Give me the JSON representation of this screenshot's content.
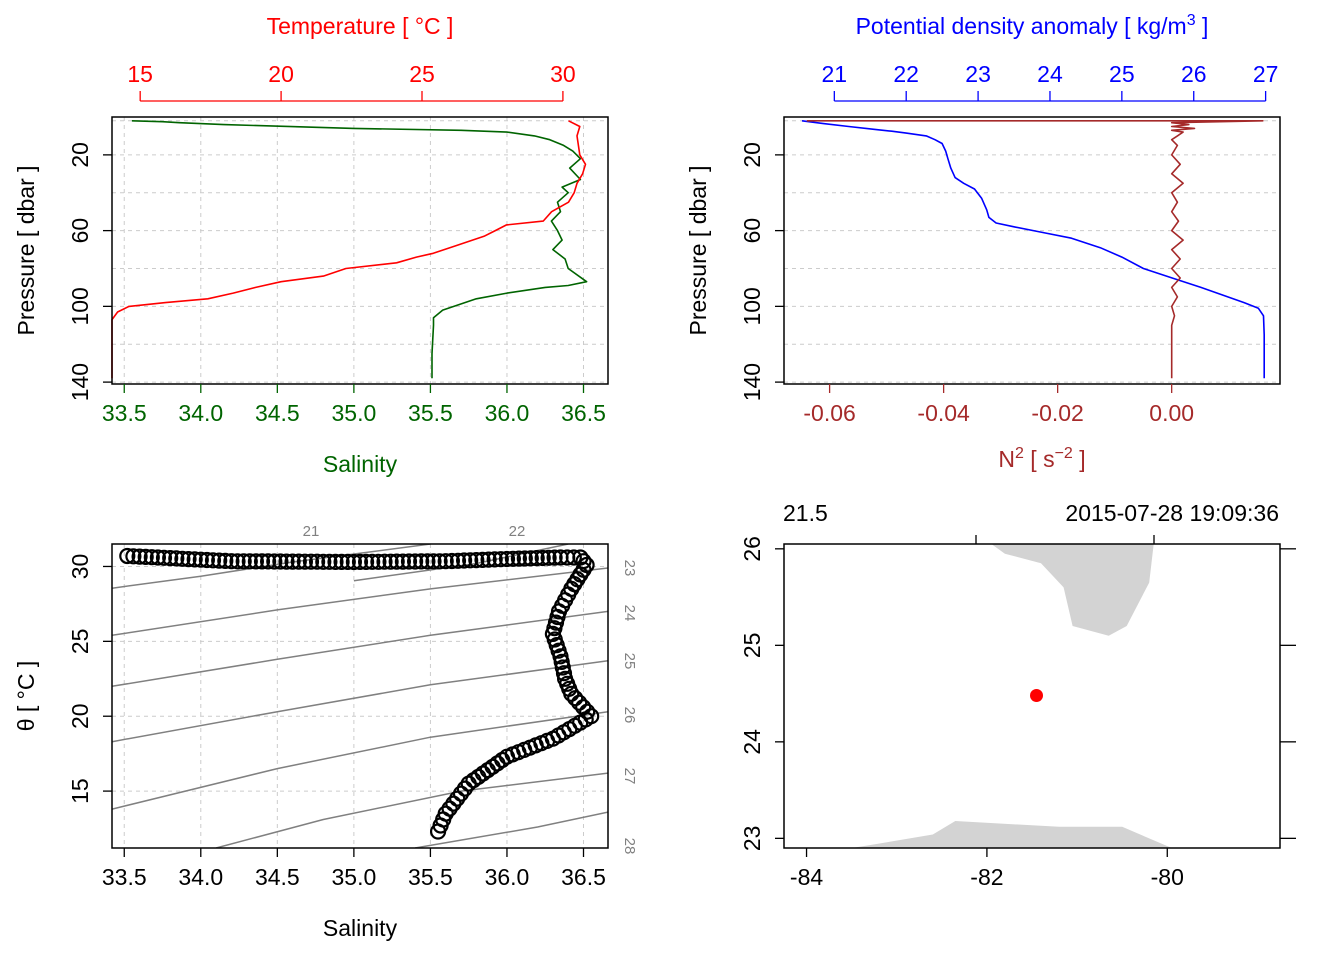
{
  "chart_data": [
    {
      "type": "line",
      "name": "profile-TS",
      "x_bottom": {
        "label": "Salinity",
        "range": [
          33.42,
          36.66
        ],
        "ticks": [
          "33.5",
          "34.0",
          "34.5",
          "35.0",
          "35.5",
          "36.0",
          "36.5"
        ],
        "color": "#006400"
      },
      "x_top": {
        "label": "Temperature [ °C ]",
        "range": [
          14.0,
          31.6
        ],
        "ticks": [
          "15",
          "20",
          "25",
          "30"
        ],
        "color": "#ff0000"
      },
      "y": {
        "label": "Pressure [ dbar ]",
        "range": [
          141,
          0
        ],
        "ticks": [
          "20",
          "60",
          "100",
          "140"
        ]
      },
      "grid": true,
      "series": [
        {
          "name": "Salinity",
          "axis": "bottom",
          "color": "#006400",
          "x": [
            33.55,
            33.75,
            33.86,
            34.15,
            35.0,
            35.7,
            36.0,
            36.18,
            36.28,
            36.37,
            36.43,
            36.48,
            36.41,
            36.48,
            36.36,
            36.4,
            36.33,
            36.35,
            36.29,
            36.33,
            36.36,
            36.3,
            36.38,
            36.4,
            36.52,
            36.4,
            36.25,
            36.0,
            35.8,
            35.58,
            35.52,
            35.52,
            35.51,
            35.51
          ],
          "y": [
            2,
            2.5,
            3,
            4,
            6,
            7,
            8,
            10,
            12,
            15,
            18,
            22,
            27,
            33,
            37,
            40,
            45,
            50,
            55,
            60,
            65,
            70,
            75,
            80,
            87,
            89,
            90,
            93,
            96,
            102,
            106,
            110,
            125,
            138
          ]
        },
        {
          "name": "Temperature",
          "axis": "top",
          "color": "#ff0000",
          "x": [
            30.2,
            30.6,
            30.5,
            30.6,
            30.8,
            30.7,
            30.5,
            30.4,
            30.2,
            29.6,
            29.3,
            28.0,
            27.6,
            27.2,
            26.2,
            25.4,
            24.8,
            24.1,
            22.3,
            21.5,
            20.0,
            19.1,
            18.3,
            17.4,
            15.9,
            14.6,
            14.2,
            14.0,
            14.0,
            14.0
          ],
          "y": [
            2,
            5,
            10,
            20,
            25,
            30,
            35,
            40,
            45,
            50,
            55,
            57,
            60,
            63,
            68,
            72,
            74,
            77,
            80,
            84,
            87,
            90,
            93,
            96,
            98,
            100,
            103,
            107,
            115,
            138
          ]
        }
      ]
    },
    {
      "type": "line",
      "name": "profile-density-N2",
      "x_bottom": {
        "label_base": "N",
        "label_sup": "2",
        "label_tail": " [ s",
        "label_sup2": "−2",
        "label_end": " ]",
        "range": [
          -0.068,
          0.019
        ],
        "ticks": [
          "-0.06",
          "-0.04",
          "-0.02",
          "0.00"
        ],
        "color": "#a52a2a"
      },
      "x_top": {
        "label_base": "Potential density anomaly [ kg/m",
        "label_sup": "3",
        "label_end": " ]",
        "range": [
          20.3,
          27.2
        ],
        "ticks": [
          "21",
          "22",
          "23",
          "24",
          "25",
          "26",
          "27"
        ],
        "color": "#0000ff"
      },
      "y": {
        "label": "Pressure [ dbar ]",
        "range": [
          141,
          0
        ],
        "ticks": [
          "20",
          "60",
          "100",
          "140"
        ]
      },
      "grid": true,
      "series": [
        {
          "name": "Potential density anomaly",
          "axis": "top",
          "color": "#0000ff",
          "x": [
            20.55,
            20.85,
            21.2,
            21.55,
            21.8,
            22.0,
            22.28,
            22.4,
            22.5,
            22.55,
            22.58,
            22.62,
            22.68,
            22.8,
            22.95,
            23.05,
            23.12,
            23.15,
            23.25,
            23.5,
            23.9,
            24.3,
            24.7,
            25.0,
            25.3,
            25.7,
            26.1,
            26.4,
            26.7,
            26.9,
            26.97,
            26.98,
            26.98
          ],
          "y": [
            2,
            3.5,
            5,
            6.5,
            7.5,
            8.5,
            10,
            12,
            14,
            18,
            22,
            27,
            32,
            35,
            38,
            43,
            49,
            53,
            56,
            58,
            61,
            64,
            69,
            74,
            80,
            85,
            90,
            94,
            98,
            101,
            105,
            115,
            138
          ]
        },
        {
          "name": "N2",
          "axis": "bottom",
          "color": "#a52a2a",
          "x": [
            -0.064,
            0.016,
            0.0,
            0.003,
            0.0,
            0.004,
            0.0,
            0.002,
            0.001,
            0.0,
            0.001,
            0.0,
            0.0015,
            0.0,
            0.002,
            0.0,
            0.001,
            0.0,
            0.0012,
            0.0,
            0.002,
            0.0,
            0.0015,
            0.0,
            0.0015,
            0.0,
            0.001,
            0.0,
            0.0005,
            0.0,
            0.0
          ],
          "y": [
            2,
            2,
            3,
            4,
            5,
            6,
            7,
            8,
            10,
            12,
            15,
            20,
            25,
            30,
            35,
            40,
            45,
            50,
            55,
            60,
            65,
            70,
            75,
            80,
            85,
            90,
            95,
            100,
            105,
            110,
            138
          ]
        }
      ]
    },
    {
      "type": "scatter",
      "name": "TS-diagram",
      "x": {
        "label": "Salinity",
        "range": [
          33.42,
          36.66
        ],
        "ticks": [
          "33.5",
          "34.0",
          "34.5",
          "35.0",
          "35.5",
          "36.0",
          "36.5"
        ]
      },
      "y": {
        "label": "θ [ °C ]",
        "range": [
          11.2,
          31.5
        ],
        "ticks": [
          "15",
          "20",
          "25",
          "30"
        ]
      },
      "isopycnal_labels": [
        "21",
        "22",
        "23",
        "24",
        "25",
        "26",
        "27",
        "28"
      ],
      "isopycnals": [
        {
          "label": "21",
          "points": [
            [
              33.42,
              28.55
            ],
            [
              34.0,
              29.35
            ],
            [
              34.6,
              30.3
            ],
            [
              35.5,
              31.5
            ]
          ]
        },
        {
          "label": "22",
          "points": [
            [
              35.0,
              29.05
            ],
            [
              35.8,
              30.2
            ],
            [
              36.4,
              31.5
            ]
          ]
        },
        {
          "label": "23",
          "points": [
            [
              33.42,
              25.4
            ],
            [
              34.5,
              27.1
            ],
            [
              35.5,
              28.5
            ],
            [
              36.66,
              29.9
            ]
          ]
        },
        {
          "label": "24",
          "points": [
            [
              33.42,
              22.0
            ],
            [
              34.5,
              23.8
            ],
            [
              35.5,
              25.4
            ],
            [
              36.66,
              27.0
            ]
          ]
        },
        {
          "label": "25",
          "points": [
            [
              33.42,
              18.3
            ],
            [
              34.5,
              20.3
            ],
            [
              35.5,
              22.1
            ],
            [
              36.66,
              23.7
            ]
          ]
        },
        {
          "label": "26",
          "points": [
            [
              33.42,
              13.8
            ],
            [
              34.5,
              16.5
            ],
            [
              35.5,
              18.6
            ],
            [
              36.66,
              20.3
            ]
          ]
        },
        {
          "label": "27",
          "points": [
            [
              34.1,
              11.2
            ],
            [
              34.8,
              13.1
            ],
            [
              35.7,
              15.0
            ],
            [
              36.66,
              16.2
            ]
          ]
        },
        {
          "label": "28",
          "points": [
            [
              35.4,
              11.2
            ],
            [
              36.2,
              12.6
            ],
            [
              36.66,
              13.6
            ]
          ]
        }
      ],
      "profile": {
        "S": [
          33.52,
          34.2,
          35.0,
          35.6,
          36.0,
          36.35,
          36.48,
          36.52,
          36.42,
          36.34,
          36.3,
          36.35,
          36.38,
          36.42,
          36.55,
          36.3,
          36.0,
          35.75,
          35.6,
          35.55
        ],
        "T": [
          30.7,
          30.35,
          30.3,
          30.35,
          30.5,
          30.6,
          30.6,
          30.1,
          28.5,
          27.0,
          25.5,
          24.0,
          22.5,
          21.5,
          20.0,
          18.5,
          17.3,
          15.5,
          13.5,
          12.3
        ]
      }
    },
    {
      "type": "map",
      "name": "station-map",
      "x": {
        "range": [
          -84.25,
          -78.75
        ],
        "ticks": [
          "-84",
          "-82",
          "-80"
        ]
      },
      "y": {
        "range": [
          22.9,
          26.05
        ],
        "ticks": [
          "23",
          "24",
          "25",
          "26"
        ]
      },
      "top_labels": [
        "21.5",
        "2015-07-28 19:09:36"
      ],
      "station": {
        "lon": -81.45,
        "lat": 24.48,
        "color": "#ff0000"
      },
      "land_color": "#d3d3d3",
      "land": [
        {
          "name": "florida",
          "points": [
            [
              -81.95,
              26.05
            ],
            [
              -80.15,
              26.05
            ],
            [
              -80.2,
              25.65
            ],
            [
              -80.45,
              25.2
            ],
            [
              -80.65,
              25.1
            ],
            [
              -81.05,
              25.2
            ],
            [
              -81.15,
              25.6
            ],
            [
              -81.4,
              25.85
            ],
            [
              -81.8,
              25.95
            ]
          ]
        },
        {
          "name": "cuba",
          "points": [
            [
              -83.5,
              22.9
            ],
            [
              -83.3,
              22.93
            ],
            [
              -82.6,
              23.04
            ],
            [
              -82.35,
              23.18
            ],
            [
              -81.2,
              23.12
            ],
            [
              -80.5,
              23.12
            ],
            [
              -79.95,
              22.9
            ]
          ]
        }
      ]
    }
  ]
}
